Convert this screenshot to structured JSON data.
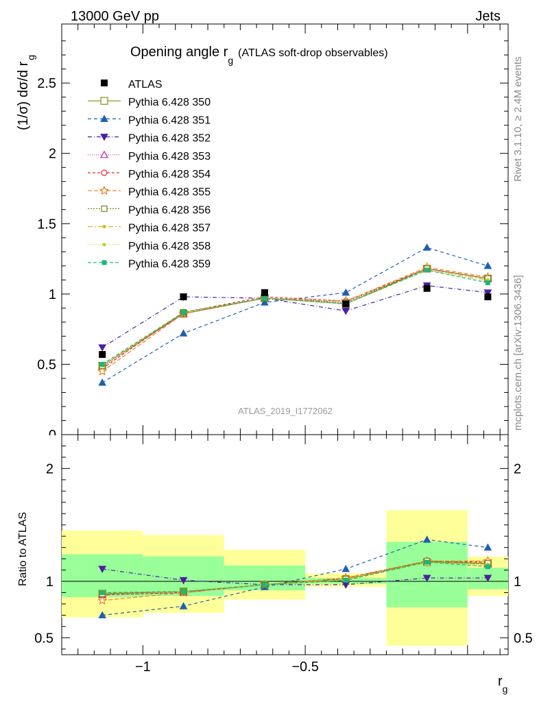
{
  "header": {
    "left": "13000 GeV pp",
    "right": "Jets"
  },
  "title": {
    "main": "Opening angle r",
    "sub": "g",
    "suffix": "(ATLAS soft-drop observables)"
  },
  "side_texts": {
    "rivet": "Rivet 3.1.10, ≥ 2.4M events",
    "mcplots": "mcplots.cern.ch [arXiv:1306.3436]"
  },
  "watermark": "ATLAS_2019_I1772062",
  "main_ylabel": {
    "prefix": "(1/σ) dσ/d r",
    "sub": "g"
  },
  "ratio_ylabel": "Ratio to ATLAS",
  "xlabel": {
    "main": "r",
    "sub": "g"
  },
  "chart_data": {
    "type": "line",
    "bins": [
      [
        -1.25,
        -1.0
      ],
      [
        -1.0,
        -0.75
      ],
      [
        -0.75,
        -0.5
      ],
      [
        -0.5,
        -0.25
      ],
      [
        -0.25,
        0.0
      ],
      [
        0.0,
        0.125
      ]
    ],
    "x": [
      -1.125,
      -0.875,
      -0.625,
      -0.375,
      -0.125,
      0.0625
    ],
    "xlim": [
      -1.25,
      0.125
    ],
    "xticks": [
      {
        "value": -1,
        "label": "−1"
      },
      {
        "value": -0.5,
        "label": "−0.5"
      }
    ],
    "main": {
      "ylim": [
        0,
        2.92
      ],
      "yticks": [
        {
          "value": 0.5,
          "label": "0.5"
        },
        {
          "value": 1,
          "label": "1"
        },
        {
          "value": 1.5,
          "label": "1.5"
        },
        {
          "value": 2,
          "label": "2"
        },
        {
          "value": 2.5,
          "label": "2.5"
        }
      ],
      "reference": {
        "name": "ATLAS",
        "values": [
          0.57,
          0.98,
          1.01,
          0.93,
          1.04,
          0.98
        ]
      }
    },
    "ratio": {
      "ylim": [
        0.35,
        2.3
      ],
      "yticks": [
        {
          "value": 0.5,
          "label": "0.5"
        },
        {
          "value": 1,
          "label": "1"
        },
        {
          "value": 2,
          "label": "2"
        }
      ],
      "bands": [
        {
          "x0": -1.25,
          "x1": -1.0,
          "outer": [
            0.68,
            1.45
          ],
          "inner": [
            0.86,
            1.24
          ]
        },
        {
          "x0": -1.0,
          "x1": -0.75,
          "outer": [
            0.72,
            1.41
          ],
          "inner": [
            0.87,
            1.22
          ]
        },
        {
          "x0": -0.75,
          "x1": -0.5,
          "outer": [
            0.84,
            1.28
          ],
          "inner": [
            0.92,
            1.14
          ]
        },
        {
          "x0": -0.5,
          "x1": -0.25,
          "outer": [
            0.95,
            1.07
          ],
          "inner": [
            0.98,
            1.03
          ]
        },
        {
          "x0": -0.25,
          "x1": 0.0,
          "outer": [
            0.43,
            1.63
          ],
          "inner": [
            0.77,
            1.35
          ]
        },
        {
          "x0": 0.0,
          "x1": 0.125,
          "outer": [
            0.87,
            1.22
          ],
          "inner": [
            0.93,
            1.12
          ]
        }
      ]
    },
    "series": [
      {
        "name": "Pythia 6.428 350",
        "color": "#8a8a1a",
        "dash": "",
        "marker": "square-open",
        "values": [
          0.49,
          0.86,
          0.97,
          0.93,
          1.18,
          1.11
        ],
        "ratio": [
          0.89,
          0.91,
          0.97,
          1.02,
          1.17,
          1.16
        ]
      },
      {
        "name": "Pythia 6.428 351",
        "color": "#1f5fb4",
        "dash": "5,4",
        "marker": "triangle-up",
        "values": [
          0.37,
          0.72,
          0.94,
          1.01,
          1.33,
          1.2
        ],
        "ratio": [
          0.7,
          0.78,
          0.95,
          1.11,
          1.37,
          1.3
        ]
      },
      {
        "name": "Pythia 6.428 352",
        "color": "#4b1fa3",
        "dash": "6,3,1,3",
        "marker": "triangle-down",
        "values": [
          0.62,
          0.98,
          0.97,
          0.88,
          1.06,
          1.01
        ],
        "ratio": [
          1.11,
          1.01,
          0.97,
          0.97,
          1.03,
          1.03
        ]
      },
      {
        "name": "Pythia 6.428 353",
        "color": "#c020a0",
        "dash": "1,2",
        "marker": "triangle-open",
        "values": [
          0.48,
          0.86,
          0.97,
          0.94,
          1.18,
          1.11
        ],
        "ratio": [
          0.88,
          0.9,
          0.97,
          1.02,
          1.18,
          1.15
        ]
      },
      {
        "name": "Pythia 6.428 354",
        "color": "#e8252a",
        "dash": "4,3",
        "marker": "circle-open",
        "values": [
          0.47,
          0.87,
          0.98,
          0.95,
          1.18,
          1.11
        ],
        "ratio": [
          0.88,
          0.9,
          0.97,
          1.03,
          1.18,
          1.17
        ]
      },
      {
        "name": "Pythia 6.428 355",
        "color": "#f07d1d",
        "dash": "6,3",
        "marker": "star-open",
        "values": [
          0.45,
          0.86,
          0.97,
          0.95,
          1.19,
          1.12
        ],
        "ratio": [
          0.83,
          0.9,
          0.97,
          1.03,
          1.18,
          1.18
        ]
      },
      {
        "name": "Pythia 6.428 356",
        "color": "#6e8a1a",
        "dash": "2,2",
        "marker": "square-open-small",
        "values": [
          0.49,
          0.87,
          0.97,
          0.94,
          1.18,
          1.11
        ],
        "ratio": [
          0.89,
          0.91,
          0.97,
          1.02,
          1.18,
          1.16
        ]
      },
      {
        "name": "Pythia 6.428 357",
        "color": "#d8b81a",
        "dash": "7,3,2,3",
        "marker": "dot-small",
        "values": [
          0.49,
          0.87,
          0.97,
          0.93,
          1.17,
          1.1
        ],
        "ratio": [
          0.9,
          0.91,
          0.97,
          1.02,
          1.17,
          1.15
        ]
      },
      {
        "name": "Pythia 6.428 358",
        "color": "#b8d41a",
        "dash": "1,2",
        "marker": "dot-small",
        "values": [
          0.49,
          0.87,
          0.97,
          0.93,
          1.17,
          1.09
        ],
        "ratio": [
          0.9,
          0.91,
          0.97,
          1.01,
          1.17,
          1.14
        ]
      },
      {
        "name": "Pythia 6.428 359",
        "color": "#1ab87a",
        "dash": "5,3",
        "marker": "square-filled-small",
        "values": [
          0.5,
          0.87,
          0.97,
          0.93,
          1.17,
          1.08
        ],
        "ratio": [
          0.9,
          0.91,
          0.97,
          1.01,
          1.17,
          1.13
        ]
      }
    ]
  }
}
